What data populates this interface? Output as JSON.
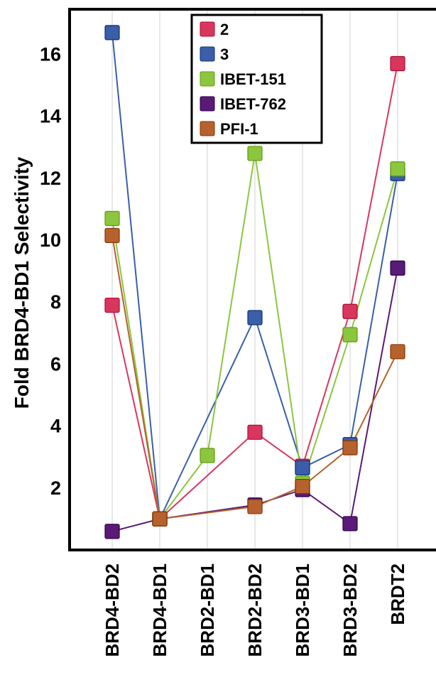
{
  "chart_data": {
    "type": "line",
    "ylabel": "Fold BRD4-BD1 Selectivity",
    "xlabel": "",
    "title": "",
    "categories": [
      "BRD4-BD2",
      "BRD4-BD1",
      "BRD2-BD1",
      "BRD2-BD2",
      "BRD3-BD1",
      "BRD3-BD2",
      "BRDT2"
    ],
    "ylim": [
      0,
      17.5
    ],
    "yticks": [
      2,
      4,
      6,
      8,
      10,
      12,
      14,
      16
    ],
    "grid": "vertical",
    "legend_position": "top-center",
    "series": [
      {
        "name": "2",
        "color": "#d9365e",
        "values": [
          7.9,
          1.0,
          null,
          3.8,
          2.7,
          7.7,
          15.7
        ]
      },
      {
        "name": "3",
        "color": "#3a5fa8",
        "values": [
          16.7,
          1.0,
          null,
          7.5,
          2.65,
          3.4,
          12.15
        ]
      },
      {
        "name": "IBET-151",
        "color": "#8cc63e",
        "values": [
          10.7,
          1.0,
          3.05,
          12.8,
          2.15,
          6.95,
          12.3
        ]
      },
      {
        "name": "IBET-762",
        "color": "#5a1a78",
        "values": [
          0.6,
          1.0,
          null,
          1.45,
          1.95,
          0.85,
          9.1
        ]
      },
      {
        "name": "PFI-1",
        "color": "#b5622e",
        "values": [
          10.15,
          1.0,
          null,
          1.4,
          2.05,
          3.3,
          6.4
        ]
      }
    ]
  }
}
